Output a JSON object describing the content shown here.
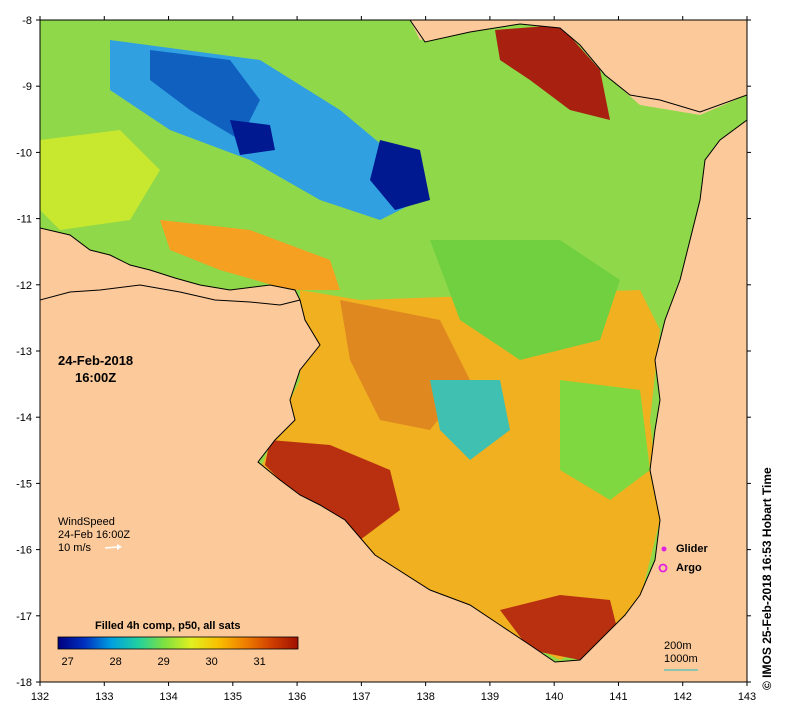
{
  "map": {
    "lon_range": [
      132,
      143
    ],
    "lat_range": [
      -18,
      -8
    ],
    "lon_ticks": [
      "132",
      "133",
      "134",
      "135",
      "136",
      "137",
      "138",
      "139",
      "140",
      "141",
      "142",
      "143"
    ],
    "lat_ticks": [
      "-8",
      "-9",
      "-10",
      "-11",
      "-12",
      "-13",
      "-14",
      "-15",
      "-16",
      "-17",
      "-18"
    ],
    "land_color": "#fbc99a",
    "coast_color": "#000000"
  },
  "timestamp": {
    "date": "24-Feb-2018",
    "time": "16:00Z"
  },
  "wind": {
    "label": "WindSpeed",
    "time": "24-Feb 16:00Z",
    "scale": "10 m/s"
  },
  "colorbar": {
    "title": "Filled 4h comp, p50, all sats",
    "ticks": [
      "27",
      "28",
      "29",
      "30",
      "31"
    ],
    "range": [
      26.8,
      31.8
    ],
    "colors": [
      "#000080",
      "#0030c0",
      "#00a0e0",
      "#20d0a0",
      "#80e040",
      "#e0f020",
      "#f8c000",
      "#f08000",
      "#d04000",
      "#a01000"
    ]
  },
  "markers": {
    "glider": "Glider",
    "argo": "Argo",
    "glider_color": "#e020e0",
    "argo_color": "#e020e0"
  },
  "scale_legend": {
    "depth1": "200m",
    "depth2": "1000m"
  },
  "credit": {
    "symbol": "©",
    "text": "IMOS 25-Feb-2018 16:53 Hobart Time"
  }
}
